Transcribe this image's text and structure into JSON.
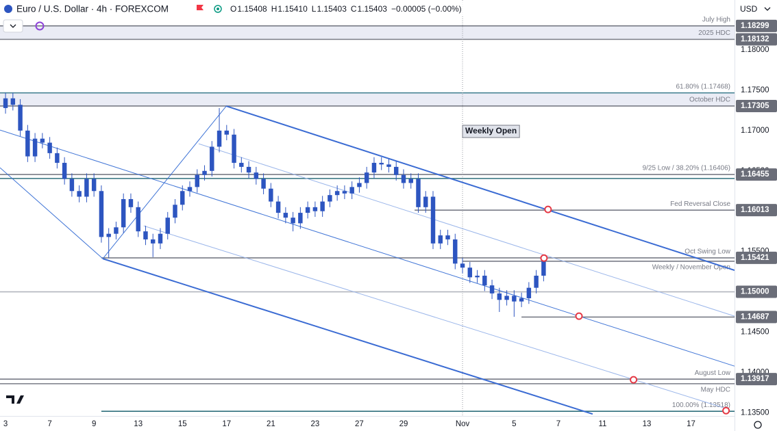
{
  "header": {
    "symbol": "Euro / U.S. Dollar · 4h · FOREXCOM",
    "quote": [
      {
        "key": "O",
        "value": "1.15408"
      },
      {
        "key": "H",
        "value": "1.15410"
      },
      {
        "key": "L",
        "value": "1.15403"
      },
      {
        "key": "C",
        "value": "1.15403"
      }
    ],
    "change": "−0.00005 (−0.00%)",
    "currency": "USD"
  },
  "chart_data": {
    "type": "candlestick",
    "color": "#2d55c0",
    "x": [
      0,
      2,
      4,
      6,
      8,
      10,
      12,
      14,
      16,
      18,
      20,
      22,
      24,
      26,
      28,
      30,
      32,
      34,
      36,
      38,
      40,
      42,
      44,
      46,
      48,
      50,
      52,
      54,
      56,
      58,
      60,
      62,
      64,
      66,
      68,
      70,
      72,
      74,
      76,
      78,
      80,
      82,
      84,
      86,
      88,
      90,
      92,
      94,
      96,
      98,
      100,
      102,
      104,
      106,
      108,
      110,
      112,
      114,
      116,
      118,
      120,
      122,
      124,
      126,
      128,
      130,
      132,
      134,
      136,
      138,
      140,
      142,
      144,
      146
    ],
    "open": [
      1.1728,
      1.174,
      1.1732,
      1.17,
      1.1668,
      1.169,
      1.1685,
      1.1672,
      1.166,
      1.164,
      1.1625,
      1.1618,
      1.164,
      1.1625,
      1.1568,
      1.1572,
      1.158,
      1.1615,
      1.1605,
      1.1575,
      1.1565,
      1.156,
      1.1572,
      1.1592,
      1.1608,
      1.1625,
      1.163,
      1.1645,
      1.165,
      1.168,
      1.17,
      1.1695,
      1.166,
      1.1655,
      1.1648,
      1.164,
      1.1628,
      1.1612,
      1.1598,
      1.1592,
      1.1585,
      1.1598,
      1.1605,
      1.16,
      1.1612,
      1.162,
      1.1625,
      1.1622,
      1.163,
      1.1635,
      1.1648,
      1.166,
      1.1658,
      1.1655,
      1.1645,
      1.1635,
      1.164,
      1.1605,
      1.1618,
      1.156,
      1.157,
      1.1565,
      1.1535,
      1.153,
      1.1518,
      1.152,
      1.1508,
      1.1498,
      1.149,
      1.1495,
      1.1488,
      1.1492,
      1.1505,
      1.152
    ],
    "high": [
      1.1747,
      1.1747,
      1.1739,
      1.1707,
      1.1697,
      1.1697,
      1.1692,
      1.1679,
      1.1667,
      1.1647,
      1.1632,
      1.1647,
      1.1647,
      1.1632,
      1.1579,
      1.1587,
      1.1622,
      1.1622,
      1.1612,
      1.1582,
      1.1572,
      1.1579,
      1.1599,
      1.1615,
      1.1632,
      1.1637,
      1.1652,
      1.1657,
      1.1687,
      1.1728,
      1.1707,
      1.1702,
      1.1667,
      1.1662,
      1.1655,
      1.1647,
      1.1635,
      1.1619,
      1.1605,
      1.1599,
      1.1605,
      1.1612,
      1.1612,
      1.1619,
      1.1627,
      1.1632,
      1.1632,
      1.1637,
      1.1642,
      1.1655,
      1.1667,
      1.1667,
      1.1665,
      1.1662,
      1.1652,
      1.1647,
      1.1647,
      1.1625,
      1.1625,
      1.1577,
      1.1577,
      1.1572,
      1.1542,
      1.1537,
      1.1527,
      1.1527,
      1.1515,
      1.1505,
      1.1502,
      1.1502,
      1.1499,
      1.1512,
      1.1527,
      1.1543
    ],
    "low": [
      1.1721,
      1.1725,
      1.1693,
      1.1661,
      1.1661,
      1.1678,
      1.1665,
      1.1653,
      1.1633,
      1.1618,
      1.1611,
      1.1611,
      1.1618,
      1.1561,
      1.1542,
      1.1565,
      1.1573,
      1.1598,
      1.1568,
      1.1558,
      1.1543,
      1.1553,
      1.1565,
      1.1585,
      1.1601,
      1.1618,
      1.1623,
      1.1638,
      1.1643,
      1.1673,
      1.1688,
      1.1653,
      1.1648,
      1.1641,
      1.1633,
      1.1621,
      1.1605,
      1.1591,
      1.1585,
      1.1575,
      1.1578,
      1.1591,
      1.1593,
      1.1593,
      1.1605,
      1.1613,
      1.1615,
      1.1615,
      1.1623,
      1.1628,
      1.1641,
      1.1651,
      1.1648,
      1.1638,
      1.1628,
      1.1628,
      1.1598,
      1.1598,
      1.1553,
      1.1553,
      1.1558,
      1.1528,
      1.1523,
      1.1511,
      1.1511,
      1.1501,
      1.1491,
      1.1475,
      1.1483,
      1.1469,
      1.1481,
      1.1485,
      1.1498,
      1.1513
    ],
    "close": [
      1.174,
      1.1732,
      1.17,
      1.1668,
      1.169,
      1.1685,
      1.1672,
      1.166,
      1.164,
      1.1625,
      1.1618,
      1.164,
      1.1625,
      1.1568,
      1.1572,
      1.158,
      1.1615,
      1.1605,
      1.1575,
      1.1565,
      1.156,
      1.1572,
      1.1592,
      1.1608,
      1.1625,
      1.163,
      1.1645,
      1.165,
      1.168,
      1.17,
      1.1695,
      1.166,
      1.1655,
      1.1648,
      1.164,
      1.1628,
      1.1612,
      1.1598,
      1.1592,
      1.1585,
      1.1598,
      1.1605,
      1.16,
      1.1612,
      1.162,
      1.1625,
      1.1622,
      1.163,
      1.1635,
      1.1648,
      1.166,
      1.1658,
      1.1655,
      1.1645,
      1.1635,
      1.164,
      1.1605,
      1.1618,
      1.156,
      1.157,
      1.1565,
      1.1535,
      1.153,
      1.1518,
      1.152,
      1.1508,
      1.1498,
      1.149,
      1.1495,
      1.1488,
      1.1492,
      1.1505,
      1.152,
      1.154
    ],
    "xlim": [
      -1.5,
      197.8
    ],
    "xticks": [
      {
        "value": 0,
        "label": "3"
      },
      {
        "value": 12,
        "label": "7"
      },
      {
        "value": 24,
        "label": "9"
      },
      {
        "value": 36,
        "label": "13"
      },
      {
        "value": 48,
        "label": "15"
      },
      {
        "value": 60,
        "label": "17"
      },
      {
        "value": 72,
        "label": "21"
      },
      {
        "value": 84,
        "label": "23"
      },
      {
        "value": 96,
        "label": "27"
      },
      {
        "value": 108,
        "label": "29"
      },
      {
        "value": 124,
        "label": "Nov"
      },
      {
        "value": 138,
        "label": "5"
      },
      {
        "value": 150,
        "label": "7"
      },
      {
        "value": 162,
        "label": "11"
      },
      {
        "value": 174,
        "label": "13"
      },
      {
        "value": 186,
        "label": "17"
      }
    ],
    "ylim": [
      1.1346,
      1.1862
    ],
    "yticks": [
      {
        "value": 1.135,
        "label": "1.13500"
      },
      {
        "value": 1.14,
        "label": "1.14000"
      },
      {
        "value": 1.145,
        "label": "1.14500"
      },
      {
        "value": 1.15,
        "label": "1.15000"
      },
      {
        "value": 1.155,
        "label": "1.15500"
      },
      {
        "value": 1.16,
        "label": "1.16000"
      },
      {
        "value": 1.165,
        "label": "1.16500"
      },
      {
        "value": 1.17,
        "label": "1.17000"
      },
      {
        "value": 1.175,
        "label": "1.17500"
      },
      {
        "value": 1.18,
        "label": "1.18000"
      }
    ],
    "levels": [
      {
        "value": 1.18299,
        "label": "July High",
        "color": "#787b86",
        "zone": true
      },
      {
        "value": 1.18132,
        "label": "2025 HDC",
        "color": "#787b86"
      },
      {
        "value": 1.17468,
        "label": "61.80% (1.17468)",
        "color": "#3f7f8f",
        "zone": true
      },
      {
        "value": 1.17305,
        "label": "October HDC",
        "color": "#787b86"
      },
      {
        "value": 1.16455,
        "label": "9/25 Low / 38.20% (1.16406)",
        "color": "#787b86"
      },
      {
        "value": 1.16406,
        "color": "#2f6f7c"
      },
      {
        "value": 1.16013,
        "label": "Fed Reversal Close",
        "color": "#787b86",
        "start": 111
      },
      {
        "value": 1.15421,
        "label": "Oct Swing Low",
        "color": "#787b86",
        "start": 26
      },
      {
        "value": 1.1538,
        "label": "Weekly / November Open",
        "color": "#787b86",
        "start": 124
      },
      {
        "value": 1.15,
        "color": "#b2b5be"
      },
      {
        "value": 1.14687,
        "color": "#787b86",
        "start": 140
      },
      {
        "value": 1.13917,
        "label": "August Low",
        "color": "#787b86"
      },
      {
        "value": 1.1386,
        "label": "May HDC",
        "color": "#787b86"
      },
      {
        "value": 1.13518,
        "label": "100.00% (1.13518)",
        "color": "#2f6f7c",
        "start": 26
      }
    ],
    "price_labels": [
      1.18299,
      1.18132,
      1.17305,
      1.16455,
      1.16013,
      1.15421,
      {
        "value": 1.15,
        "label": "1.15000"
      },
      1.14687,
      1.13917
    ],
    "trendlines": [
      {
        "x": [
          59.9,
          197.8
        ],
        "y": [
          1.17304,
          1.15267
        ],
        "color": "#3a6bd3",
        "weight": "bold"
      },
      {
        "x": [
          26.4,
          159.3
        ],
        "y": [
          1.15411,
          1.13484
        ],
        "color": "#3a6bd3",
        "weight": "bold"
      },
      {
        "x": [
          -1.5,
          197.8
        ],
        "y": [
          1.17007,
          1.14078
        ],
        "color": "#3f74d6",
        "weight": "normal"
      },
      {
        "x": [
          52.4,
          197.8
        ],
        "y": [
          1.16837,
          1.14698
        ],
        "color": "#9bb6ea",
        "weight": "normal"
      },
      {
        "x": [
          37.5,
          195.5
        ],
        "y": [
          1.15818,
          1.13552
        ],
        "color": "#9bb6ea",
        "weight": "normal"
      },
      {
        "x": [
          -1.5,
          26.4
        ],
        "y": [
          1.1654,
          1.15411
        ],
        "color": "#3f74d6",
        "weight": "normal"
      },
      {
        "x": [
          26.4,
          59.9
        ],
        "y": [
          1.15411,
          1.17304
        ],
        "color": "#3f74d6",
        "weight": "normal"
      }
    ],
    "markers": {
      "color": "#e53945",
      "points": [
        {
          "x": 147.2,
          "y": 1.16022
        },
        {
          "x": 146.1,
          "y": 1.15418
        },
        {
          "x": 155.6,
          "y": 1.14698
        },
        {
          "x": 170.4,
          "y": 1.13909
        },
        {
          "x": 195.5,
          "y": 1.13526
        }
      ]
    },
    "annotations": [
      {
        "text": "Weekly Open",
        "x": 124,
        "y": 1.1699
      }
    ]
  }
}
